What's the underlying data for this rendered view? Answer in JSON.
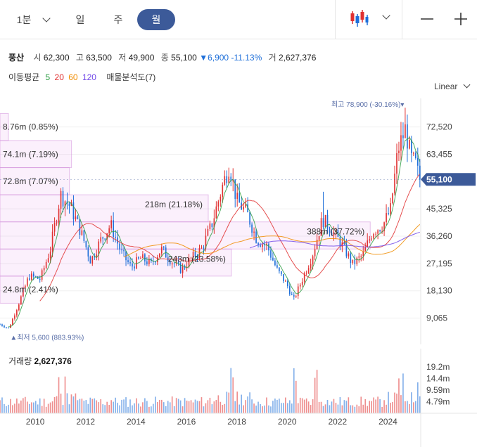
{
  "toolbar": {
    "intervals": [
      {
        "label": "1분",
        "selected": false
      },
      {
        "label": "일",
        "selected": false
      },
      {
        "label": "주",
        "selected": false
      },
      {
        "label": "월",
        "selected": true
      }
    ],
    "chart_type_icon": "candlestick-icon",
    "zoom_out_icon": "minus-icon",
    "zoom_in_icon": "plus-icon"
  },
  "stock": {
    "name": "풍산",
    "open_label": "시",
    "open": "62,300",
    "high_label": "고",
    "high": "63,500",
    "low_label": "저",
    "low": "49,900",
    "close_label": "종",
    "close": "55,100",
    "change": "6,900",
    "change_pct": "-11.13%",
    "volume_label": "거",
    "volume": "2,627,376",
    "down_color": "#1e6fd9",
    "up_color": "#e03131"
  },
  "moving_average": {
    "label": "이동평균",
    "periods": [
      {
        "value": "5",
        "color": "#2e9e44"
      },
      {
        "value": "20",
        "color": "#e03131"
      },
      {
        "value": "60",
        "color": "#f08c00"
      },
      {
        "value": "120",
        "color": "#7048e8"
      }
    ],
    "profile_label": "매물분석도(7)"
  },
  "scale_label": "Linear",
  "volume_panel": {
    "label": "거래량",
    "value": "2,627,376",
    "ticks": [
      "19.2m",
      "14.4m",
      "9.59m",
      "4.79m"
    ]
  },
  "annotations": {
    "high": "최고 78,900 (-30.16%)",
    "low": "최저 5,600 (883.93%)",
    "current_price": "55,100"
  },
  "chart_data": {
    "type": "candlestick",
    "x_ticks": [
      "2010",
      "2012",
      "2014",
      "2016",
      "2018",
      "2020",
      "2022",
      "2024"
    ],
    "y_ticks": [
      72520,
      63455,
      45325,
      36260,
      27195,
      18130,
      9065
    ],
    "y_tick_labels": [
      "72,520",
      "63,455",
      "45,325",
      "36,260",
      "27,195",
      "18,130",
      "9,065"
    ],
    "ylim": [
      5000,
      82000
    ],
    "x_range": [
      2008.6,
      2025.3
    ],
    "volume_profile": [
      {
        "label": "8.76m (0.85%)",
        "low": 68000,
        "high": 77000,
        "length": 0.02
      },
      {
        "label": "74.1m (7.19%)",
        "low": 59000,
        "high": 68000,
        "length": 0.17
      },
      {
        "label": "72.8m (7.07%)",
        "low": 50000,
        "high": 59000,
        "length": 0.165
      },
      {
        "label": "218m (21.18%)",
        "low": 41000,
        "high": 50000,
        "length": 0.495
      },
      {
        "label": "388m (37.72%)",
        "low": 32000,
        "high": 41000,
        "length": 0.88
      },
      {
        "label": "243m (23.58%)",
        "low": 23000,
        "high": 32000,
        "length": 0.55
      },
      {
        "label": "24.8m (2.41%)",
        "low": 14000,
        "high": 23000,
        "length": 0.056
      }
    ],
    "anchors": [
      [
        2008.6,
        7000
      ],
      [
        2008.95,
        5600
      ],
      [
        2009.3,
        13000
      ],
      [
        2009.75,
        23000
      ],
      [
        2010.2,
        22000
      ],
      [
        2010.6,
        32000
      ],
      [
        2011.0,
        50000
      ],
      [
        2011.4,
        46000
      ],
      [
        2011.8,
        38000
      ],
      [
        2012.2,
        28000
      ],
      [
        2012.6,
        35000
      ],
      [
        2013.0,
        40000
      ],
      [
        2013.4,
        31000
      ],
      [
        2013.8,
        26000
      ],
      [
        2014.2,
        29000
      ],
      [
        2014.6,
        27000
      ],
      [
        2015.0,
        32000
      ],
      [
        2015.4,
        28000
      ],
      [
        2015.8,
        25000
      ],
      [
        2016.2,
        29000
      ],
      [
        2016.6,
        32000
      ],
      [
        2017.0,
        40000
      ],
      [
        2017.4,
        52000
      ],
      [
        2017.7,
        60000
      ],
      [
        2018.0,
        48000
      ],
      [
        2018.4,
        44000
      ],
      [
        2018.8,
        35000
      ],
      [
        2019.2,
        33000
      ],
      [
        2019.6,
        25000
      ],
      [
        2020.0,
        20000
      ],
      [
        2020.25,
        15000
      ],
      [
        2020.6,
        22000
      ],
      [
        2021.0,
        30000
      ],
      [
        2021.4,
        42000
      ],
      [
        2021.8,
        38000
      ],
      [
        2022.2,
        33000
      ],
      [
        2022.6,
        27000
      ],
      [
        2023.0,
        30000
      ],
      [
        2023.4,
        38000
      ],
      [
        2023.8,
        40000
      ],
      [
        2024.1,
        45000
      ],
      [
        2024.4,
        65000
      ],
      [
        2024.7,
        72000
      ],
      [
        2024.9,
        62000
      ],
      [
        2025.1,
        60000
      ],
      [
        2025.25,
        55100
      ]
    ],
    "price_spikes": {
      "2011.00": 52000,
      "2017.70": 59000,
      "2021.40": 51000,
      "2024.70": 78900
    },
    "volume_spikes": [
      2010.9,
      2011.2,
      2017.8,
      2020.3,
      2021.1,
      2021.2,
      2024.4,
      2024.6,
      2025.2
    ],
    "volume_max": 21000000
  }
}
